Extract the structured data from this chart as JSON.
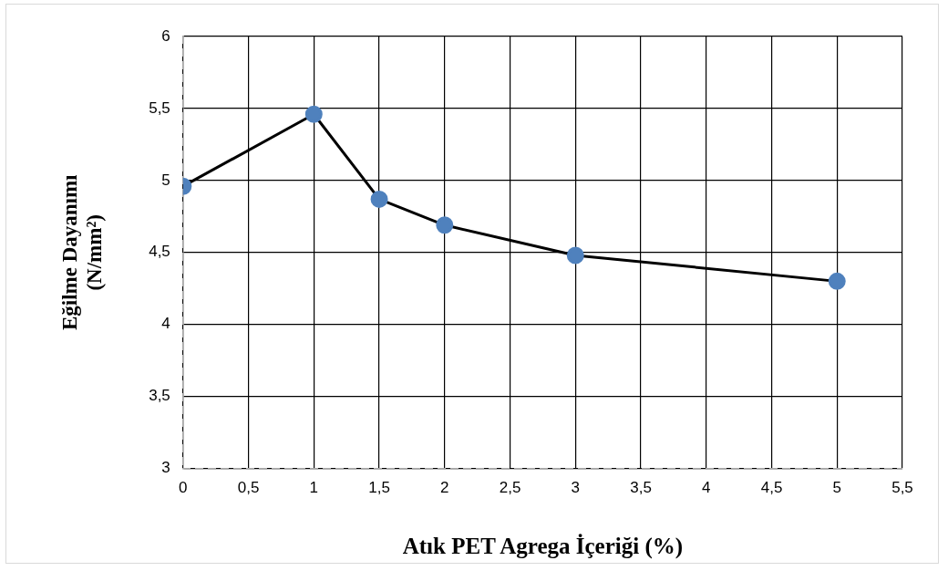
{
  "chart_data": {
    "type": "line",
    "xlabel": "Atık PET Agrega İçeriği (%)",
    "ylabel": "Eğilme Dayanımı\n(N/mm²)",
    "x": [
      0,
      1,
      1.5,
      2,
      3,
      5
    ],
    "series": [
      {
        "color": "#000000",
        "values": [
          4.96,
          5.46,
          4.87,
          4.69,
          4.48,
          4.3
        ]
      }
    ],
    "xlim": [
      0,
      5.5
    ],
    "xticks": [
      0,
      {
        "value": 0.5,
        "label": "0,5"
      },
      1,
      {
        "value": 1.5,
        "label": "1,5"
      },
      2,
      {
        "value": 2.5,
        "label": "2,5"
      },
      3,
      {
        "value": 3.5,
        "label": "3,5"
      },
      4,
      {
        "value": 4.5,
        "label": "4,5"
      },
      5,
      {
        "value": 5.5,
        "label": "5,5"
      }
    ],
    "ylim": [
      3,
      6
    ],
    "yticks": [
      3,
      {
        "value": 3.5,
        "label": "3,5"
      },
      4,
      {
        "value": 4.5,
        "label": "4,5"
      },
      5,
      {
        "value": 5.5,
        "label": "5,5"
      },
      6
    ],
    "grid": true,
    "legend": false,
    "marker": "circle",
    "line_style": "solid"
  }
}
